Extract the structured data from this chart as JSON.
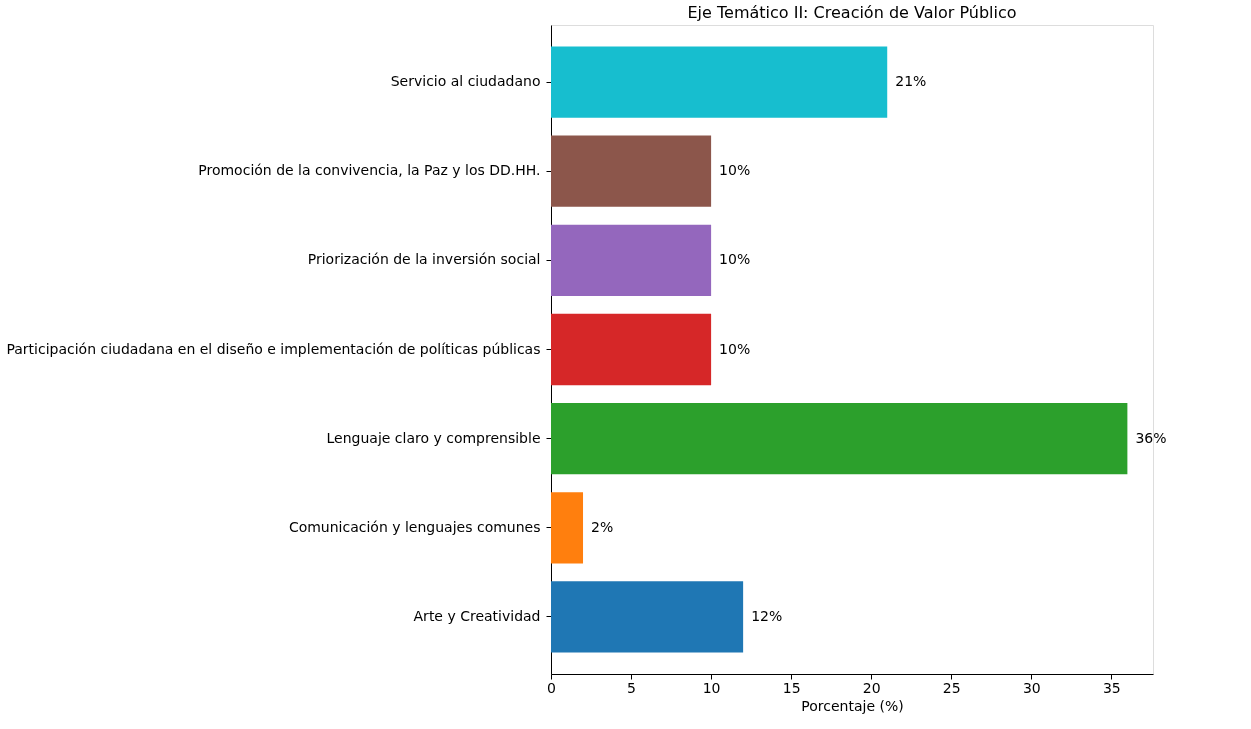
{
  "chart_data": {
    "type": "bar",
    "orientation": "horizontal",
    "title": "Eje Temático II: Creación de Valor Público",
    "xlabel": "Porcentaje (%)",
    "categories": [
      "Servicio al ciudadano",
      "Promoción de la convivencia, la Paz y los DD.HH.",
      "Priorización de la inversión social",
      "Participación ciudadana en el diseño e implementación de políticas públicas",
      "Lenguaje claro y comprensible",
      "Comunicación y lenguajes comunes",
      "Arte y Creatividad"
    ],
    "values": [
      21,
      10,
      10,
      10,
      36,
      2,
      12
    ],
    "colors": [
      "#17becf",
      "#8c564b",
      "#9467bd",
      "#d62728",
      "#2ca02c",
      "#ff7f0e",
      "#1f77b4"
    ],
    "value_labels": [
      "21%",
      "10%",
      "10%",
      "10%",
      "36%",
      "2%",
      "12%"
    ],
    "xlim": [
      0,
      37.6
    ],
    "xticks": [
      0,
      5,
      10,
      15,
      20,
      25,
      30,
      35
    ],
    "grid": false,
    "legend": false
  }
}
